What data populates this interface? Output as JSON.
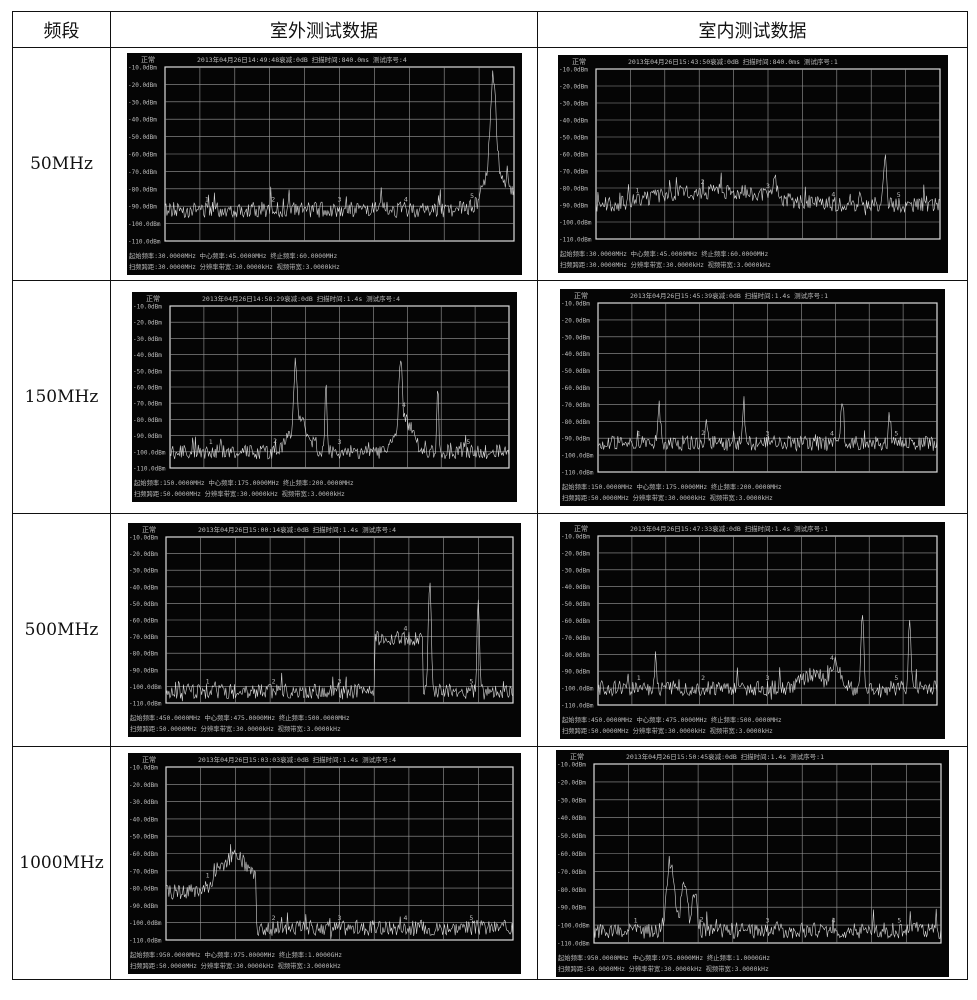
{
  "table": {
    "headers": [
      "频段",
      "室外测试数据",
      "室内测试数据"
    ],
    "rows": [
      {
        "band": "50MHz",
        "outdoor": {
          "status": "正常",
          "info": "2013年04月26日14:49:48衰减:0dB 扫描时间:840.0ms 测试序号:4",
          "y_labels": [
            "-10.0dBm",
            "-20.0dBm",
            "-30.0dBm",
            "-40.0dBm",
            "-50.0dBm",
            "-60.0dBm",
            "-70.0dBm",
            "-80.0dBm",
            "-90.0dBm",
            "-100.0dBm",
            "-110.0dBm"
          ],
          "footer1": "起始频率:30.0000MHz 中心频率:45.0000MHz 终止频率:60.0000MHz",
          "footer2": "扫频跨距:30.0000MHz 分辨率带宽:30.0000kHz 视频带宽:3.0000kHz",
          "markers": [
            "1",
            "2",
            "3",
            "4",
            "5"
          ]
        },
        "indoor": {
          "status": "正常",
          "info": "2013年04月26日15:43:50衰减:0dB 扫描时间:840.0ms 测试序号:1",
          "y_labels": [
            "-10.0dBm",
            "-20.0dBm",
            "-30.0dBm",
            "-40.0dBm",
            "-50.0dBm",
            "-60.0dBm",
            "-70.0dBm",
            "-80.0dBm",
            "-90.0dBm",
            "-100.0dBm",
            "-110.0dBm"
          ],
          "footer1": "起始频率:30.0000MHz 中心频率:45.0000MHz 终止频率:60.0000MHz",
          "footer2": "扫频跨距:30.0000MHz 分辨率带宽:30.0000kHz 视频带宽:3.0000kHz",
          "markers": [
            "1",
            "2",
            "3",
            "4",
            "5"
          ]
        }
      },
      {
        "band": "150MHz",
        "outdoor": {
          "status": "正常",
          "info": "2013年04月26日14:58:29衰减:0dB 扫描时间:1.4s 测试序号:4",
          "y_labels": [
            "-10.0dBm",
            "-20.0dBm",
            "-30.0dBm",
            "-40.0dBm",
            "-50.0dBm",
            "-60.0dBm",
            "-70.0dBm",
            "-80.0dBm",
            "-90.0dBm",
            "-100.0dBm",
            "-110.0dBm"
          ],
          "footer1": "起始频率:150.0000MHz 中心频率:175.0000MHz 终止频率:200.0000MHz",
          "footer2": "扫频跨距:50.0000MHz 分辨率带宽:30.0000kHz 视频带宽:3.0000kHz",
          "markers": [
            "1",
            "2",
            "3",
            "4",
            "5"
          ]
        },
        "indoor": {
          "status": "正常",
          "info": "2013年04月26日15:45:39衰减:0dB 扫描时间:1.4s 测试序号:1",
          "y_labels": [
            "-10.0dBm",
            "-20.0dBm",
            "-30.0dBm",
            "-40.0dBm",
            "-50.0dBm",
            "-60.0dBm",
            "-70.0dBm",
            "-80.0dBm",
            "-90.0dBm",
            "-100.0dBm",
            "-110.0dBm"
          ],
          "footer1": "起始频率:150.0000MHz 中心频率:175.0000MHz 终止频率:200.0000MHz",
          "footer2": "扫频跨距:50.0000MHz 分辨率带宽:30.0000kHz 视频带宽:3.0000kHz",
          "markers": [
            "1",
            "2",
            "3",
            "4",
            "5"
          ]
        }
      },
      {
        "band": "500MHz",
        "outdoor": {
          "status": "正常",
          "info": "2013年04月26日15:00:14衰减:0dB 扫描时间:1.4s 测试序号:4",
          "y_labels": [
            "-10.0dBm",
            "-20.0dBm",
            "-30.0dBm",
            "-40.0dBm",
            "-50.0dBm",
            "-60.0dBm",
            "-70.0dBm",
            "-80.0dBm",
            "-90.0dBm",
            "-100.0dBm",
            "-110.0dBm"
          ],
          "footer1": "起始频率:450.0000MHz 中心频率:475.0000MHz 终止频率:500.0000MHz",
          "footer2": "扫频跨距:50.0000MHz 分辨率带宽:30.0000kHz 视频带宽:3.0000kHz",
          "markers": [
            "1",
            "2",
            "3",
            "4",
            "5"
          ]
        },
        "indoor": {
          "status": "正常",
          "info": "2013年04月26日15:47:33衰减:0dB 扫描时间:1.4s 测试序号:1",
          "y_labels": [
            "-10.0dBm",
            "-20.0dBm",
            "-30.0dBm",
            "-40.0dBm",
            "-50.0dBm",
            "-60.0dBm",
            "-70.0dBm",
            "-80.0dBm",
            "-90.0dBm",
            "-100.0dBm",
            "-110.0dBm"
          ],
          "footer1": "起始频率:450.0000MHz 中心频率:475.0000MHz 终止频率:500.0000MHz",
          "footer2": "扫频跨距:50.0000MHz 分辨率带宽:30.0000kHz 视频带宽:3.0000kHz",
          "markers": [
            "1",
            "2",
            "3",
            "4",
            "5"
          ]
        }
      },
      {
        "band": "1000MHz",
        "outdoor": {
          "status": "正常",
          "info": "2013年04月26日15:03:03衰减:0dB 扫描时间:1.4s 测试序号:4",
          "y_labels": [
            "-10.0dBm",
            "-20.0dBm",
            "-30.0dBm",
            "-40.0dBm",
            "-50.0dBm",
            "-60.0dBm",
            "-70.0dBm",
            "-80.0dBm",
            "-90.0dBm",
            "-100.0dBm",
            "-110.0dBm"
          ],
          "footer1": "起始频率:950.0000MHz 中心频率:975.0000MHz 终止频率:1.0000GHz",
          "footer2": "扫频跨距:50.0000MHz 分辨率带宽:30.0000kHz 视频带宽:3.0000kHz",
          "markers": [
            "1",
            "2",
            "3",
            "4",
            "5"
          ]
        },
        "indoor": {
          "status": "正常",
          "info": "2013年04月26日15:50:45衰减:0dB 扫描时间:1.4s 测试序号:1",
          "y_labels": [
            "-10.0dBm",
            "-20.0dBm",
            "-30.0dBm",
            "-40.0dBm",
            "-50.0dBm",
            "-60.0dBm",
            "-70.0dBm",
            "-80.0dBm",
            "-90.0dBm",
            "-100.0dBm",
            "-110.0dBm"
          ],
          "footer1": "起始频率:950.0000MHz 中心频率:975.0000MHz 终止频率:1.0000GHz",
          "footer2": "扫频跨距:50.0000MHz 分辨率带宽:30.0000kHz 视频带宽:3.0000kHz",
          "markers": [
            "1",
            "2",
            "3",
            "4",
            "5"
          ]
        }
      }
    ]
  }
}
